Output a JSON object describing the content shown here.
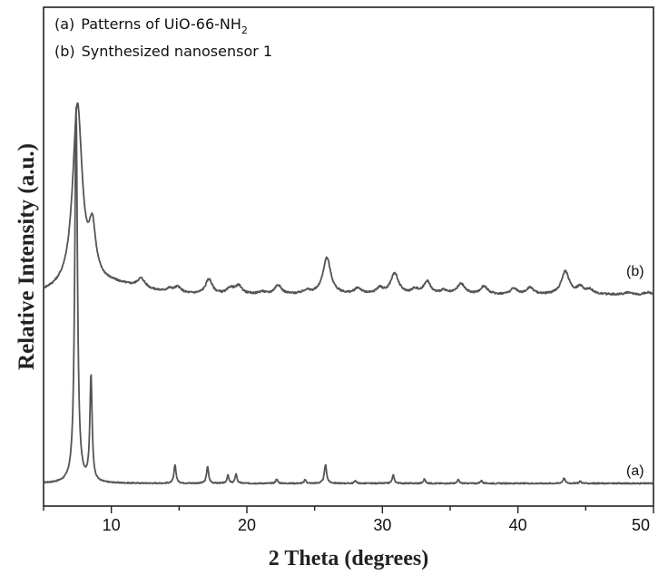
{
  "chart_data": {
    "type": "line",
    "title": "",
    "xlabel": "2 Theta (degrees)",
    "ylabel": "Relative Intensity (a.u.)",
    "xlim": [
      5,
      50
    ],
    "xticks": [
      10,
      20,
      30,
      40,
      50
    ],
    "y_units": "arbitrary (stacked, offset)",
    "grid": false,
    "legend_position": "top-left",
    "legend": [
      {
        "prefix": "(a)",
        "text": "Patterns of UiO-66-NH",
        "subscript": "2"
      },
      {
        "prefix": "(b)",
        "text": "Synthesized nanosensor 1",
        "subscript": ""
      }
    ],
    "series": [
      {
        "name": "(a)",
        "color": "#555555",
        "baseline": 0,
        "noise": 0.003,
        "peaks": [
          [
            7.4,
            1.0,
            0.12
          ],
          [
            8.5,
            0.28,
            0.1
          ],
          [
            14.7,
            0.05,
            0.09
          ],
          [
            17.1,
            0.045,
            0.09
          ],
          [
            18.6,
            0.022,
            0.08
          ],
          [
            19.2,
            0.026,
            0.08
          ],
          [
            22.2,
            0.012,
            0.08
          ],
          [
            24.3,
            0.01,
            0.08
          ],
          [
            25.8,
            0.05,
            0.1
          ],
          [
            28.0,
            0.008,
            0.08
          ],
          [
            30.8,
            0.022,
            0.09
          ],
          [
            33.1,
            0.012,
            0.08
          ],
          [
            35.6,
            0.01,
            0.08
          ],
          [
            37.3,
            0.008,
            0.08
          ],
          [
            43.4,
            0.014,
            0.1
          ],
          [
            44.6,
            0.006,
            0.08
          ]
        ]
      },
      {
        "name": "(b)",
        "color": "#555555",
        "baseline": 0,
        "noise": 0.008,
        "peaks": [
          [
            7.5,
            0.79,
            0.42
          ],
          [
            8.6,
            0.21,
            0.3
          ],
          [
            12.2,
            0.04,
            0.35
          ],
          [
            14.3,
            0.015,
            0.3
          ],
          [
            14.9,
            0.025,
            0.3
          ],
          [
            17.2,
            0.065,
            0.3
          ],
          [
            18.8,
            0.025,
            0.3
          ],
          [
            19.4,
            0.035,
            0.3
          ],
          [
            21.1,
            0.01,
            0.3
          ],
          [
            22.3,
            0.04,
            0.3
          ],
          [
            24.4,
            0.015,
            0.3
          ],
          [
            25.9,
            0.16,
            0.35
          ],
          [
            28.2,
            0.025,
            0.3
          ],
          [
            29.8,
            0.025,
            0.3
          ],
          [
            30.9,
            0.09,
            0.35
          ],
          [
            32.4,
            0.02,
            0.3
          ],
          [
            33.3,
            0.055,
            0.3
          ],
          [
            34.5,
            0.015,
            0.3
          ],
          [
            35.8,
            0.045,
            0.35
          ],
          [
            37.5,
            0.035,
            0.3
          ],
          [
            39.7,
            0.025,
            0.3
          ],
          [
            40.9,
            0.03,
            0.3
          ],
          [
            43.5,
            0.1,
            0.35
          ],
          [
            44.6,
            0.03,
            0.3
          ],
          [
            45.3,
            0.02,
            0.3
          ],
          [
            48.1,
            0.008,
            0.3
          ],
          [
            49.6,
            0.01,
            0.3
          ]
        ]
      }
    ]
  }
}
